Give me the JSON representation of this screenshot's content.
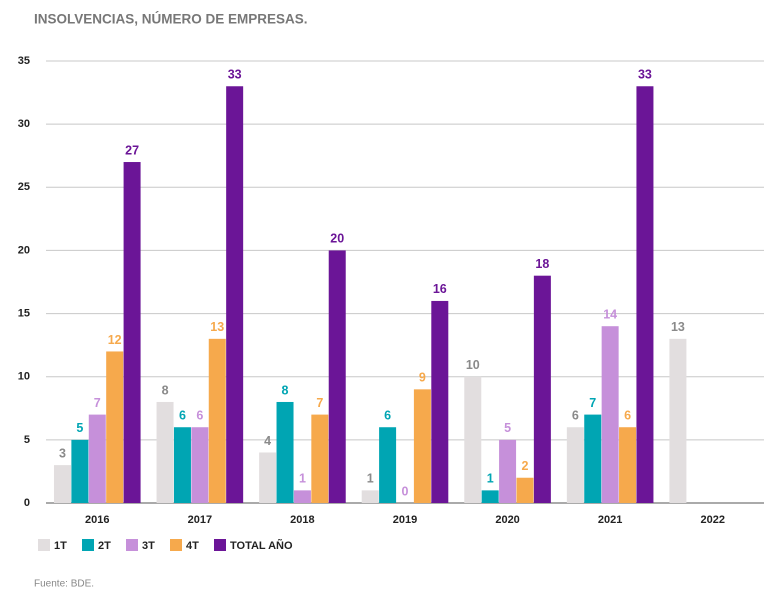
{
  "chart_data": {
    "type": "bar",
    "title": "INSOLVENCIAS, NÚMERO DE EMPRESAS.",
    "source": "Fuente: BDE.",
    "categories": [
      "2016",
      "2017",
      "2018",
      "2019",
      "2020",
      "2021",
      "2022"
    ],
    "series": [
      {
        "name": "1T",
        "color": "#e2dedf",
        "label_color": "#8a8a8a",
        "values": [
          3,
          8,
          4,
          1,
          10,
          6,
          13
        ]
      },
      {
        "name": "2T",
        "color": "#00a5b3",
        "label_color": "#00a5b3",
        "values": [
          5,
          6,
          8,
          6,
          1,
          7,
          null
        ]
      },
      {
        "name": "3T",
        "color": "#c690da",
        "label_color": "#c690da",
        "values": [
          7,
          6,
          1,
          0,
          5,
          14,
          null
        ]
      },
      {
        "name": "4T",
        "color": "#f6a94c",
        "label_color": "#f6a94c",
        "values": [
          12,
          13,
          7,
          9,
          2,
          6,
          null
        ]
      },
      {
        "name": "TOTAL AÑO",
        "color": "#6b1597",
        "label_color": "#6b1597",
        "values": [
          27,
          33,
          20,
          16,
          18,
          33,
          null
        ]
      }
    ],
    "ylim": [
      0,
      35
    ],
    "yticks": [
      0,
      5,
      10,
      15,
      20,
      25,
      30,
      35
    ],
    "grid": true
  }
}
